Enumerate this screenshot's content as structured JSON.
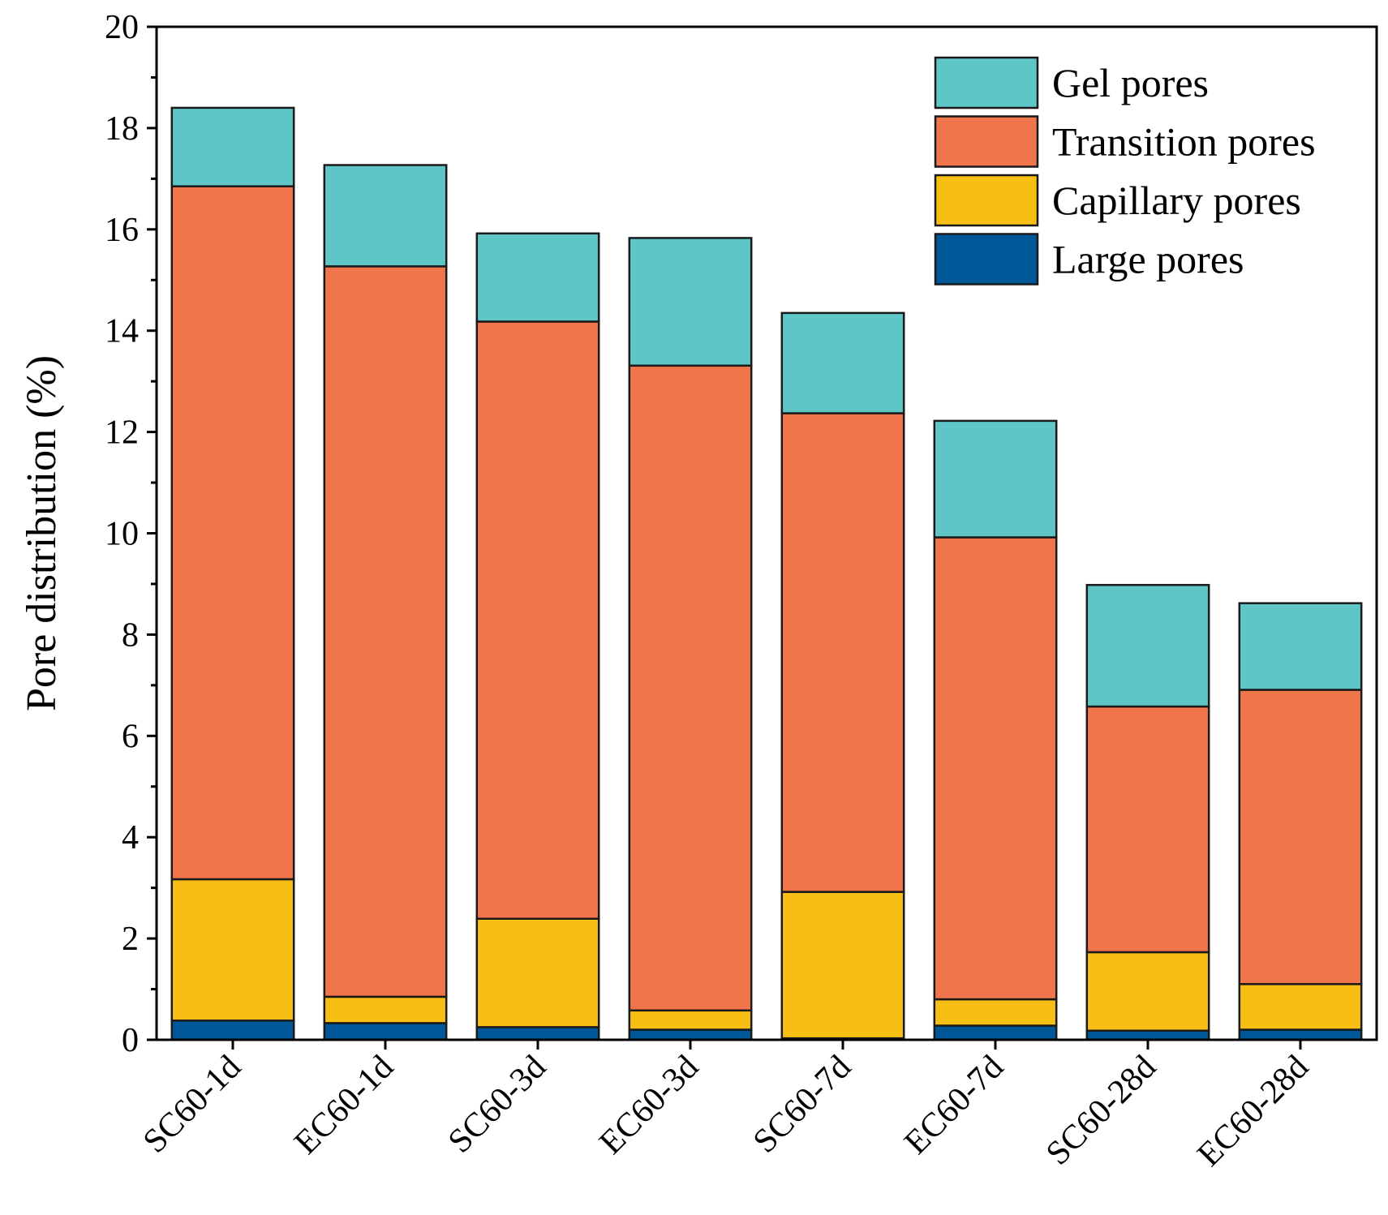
{
  "chart_data": {
    "type": "bar",
    "stacked": true,
    "title": "",
    "xlabel": "",
    "ylabel": "Pore distribution (%)",
    "ylim": [
      0,
      20
    ],
    "yticks": [
      0,
      2,
      4,
      6,
      8,
      10,
      12,
      14,
      16,
      18,
      20
    ],
    "categories": [
      "SC60-1d",
      "EC60-1d",
      "SC60-3d",
      "EC60-3d",
      "SC60-7d",
      "EC60-7d",
      "SC60-28d",
      "EC60-28d"
    ],
    "legend_position": "top-right",
    "series": [
      {
        "name": "Large pores",
        "color": "#005797",
        "values": [
          0.38,
          0.33,
          0.25,
          0.2,
          0.03,
          0.28,
          0.18,
          0.2
        ]
      },
      {
        "name": "Capillary pores",
        "color": "#F7BE13",
        "values": [
          2.79,
          0.52,
          2.14,
          0.38,
          2.89,
          0.52,
          1.55,
          0.9
        ]
      },
      {
        "name": "Transition pores",
        "color": "#F0754A",
        "values": [
          13.68,
          14.42,
          11.79,
          12.73,
          9.45,
          9.12,
          4.85,
          5.81
        ]
      },
      {
        "name": "Gel pores",
        "color": "#5FC6C8",
        "values": [
          1.55,
          2.0,
          1.74,
          2.52,
          1.98,
          2.3,
          2.4,
          1.71
        ]
      }
    ]
  }
}
